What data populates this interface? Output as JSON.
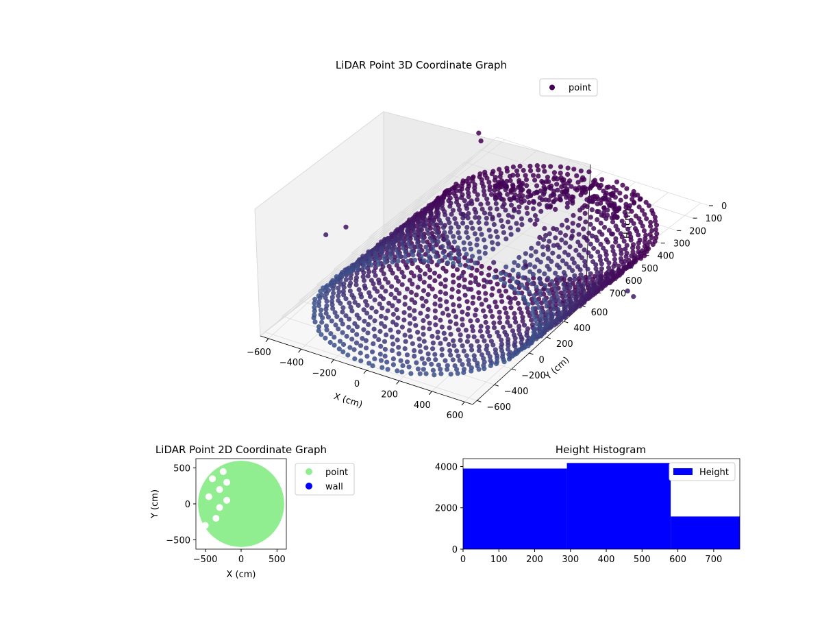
{
  "chart_data": [
    {
      "type": "scatter",
      "projection": "3d",
      "title": "LiDAR Point 3D Coordinate Graph",
      "xlabel": "X (cm)",
      "ylabel": "Y (cm)",
      "zlabel": "H (cm)",
      "x_ticks": [
        "−600",
        "−400",
        "−200",
        "0",
        "200",
        "400",
        "600"
      ],
      "y_ticks": [
        "−600",
        "−400",
        "−200",
        "0",
        "200",
        "400",
        "600"
      ],
      "z_ticks": [
        "0",
        "100",
        "200",
        "300",
        "400",
        "500",
        "600",
        "700"
      ],
      "xlim": [
        -650,
        650
      ],
      "ylim": [
        -650,
        650
      ],
      "zlim": [
        0,
        770
      ],
      "z_inverted": true,
      "colormap": "viridis",
      "colors": {
        "top": "#440154",
        "mid": "#3b528b",
        "teal": "#2c8a8c"
      },
      "legend": {
        "location": "upper right",
        "entries": [
          {
            "label": "point",
            "color": "#440154"
          }
        ]
      },
      "structure": {
        "wall": {
          "shape": "cylinder",
          "radius": 600,
          "arc_start_deg": 95,
          "arc_end_deg": 440,
          "h_min": 0,
          "h_max": 770
        },
        "interior_clusters": [
          {
            "x": -100,
            "y": 420,
            "h_min": 0,
            "h_max": 150
          },
          {
            "x": 50,
            "y": 520,
            "h_min": 0,
            "h_max": 150
          },
          {
            "x": 200,
            "y": 500,
            "h_min": 0,
            "h_max": 140
          },
          {
            "x": -300,
            "y": 300,
            "h_min": 0,
            "h_max": 130
          }
        ],
        "outliers": [
          {
            "x": -900,
            "y": -200,
            "h": 350
          },
          {
            "x": -850,
            "y": -100,
            "h": 330
          },
          {
            "x": 800,
            "y": 200,
            "h": 380
          },
          {
            "x": 750,
            "y": 300,
            "h": 420
          },
          {
            "x": -700,
            "y": 600,
            "h": 20
          },
          {
            "x": -750,
            "y": 650,
            "h": 10
          }
        ]
      }
    },
    {
      "type": "scatter",
      "title": "LiDAR Point 2D Coordinate Graph",
      "xlabel": "X (cm)",
      "ylabel": "Y (cm)",
      "x_ticks": [
        "−500",
        "0",
        "500"
      ],
      "y_ticks": [
        "−500",
        "0",
        "500"
      ],
      "xlim": [
        -630,
        630
      ],
      "ylim": [
        -630,
        630
      ],
      "legend": {
        "location": "outside right",
        "entries": [
          {
            "label": "point",
            "color": "#90ee90"
          },
          {
            "label": "wall",
            "color": "#0000ff"
          }
        ]
      },
      "series": [
        {
          "name": "point",
          "color": "#90ee90",
          "shape": "disk",
          "center": [
            0,
            0
          ],
          "radius": 600
        },
        {
          "name": "wall",
          "color": "#0000ff",
          "points": []
        }
      ],
      "gaps": [
        {
          "x": -450,
          "y": 100
        },
        {
          "x": -300,
          "y": 200
        },
        {
          "x": -200,
          "y": 50
        },
        {
          "x": -400,
          "y": 350
        },
        {
          "x": -250,
          "y": 450
        },
        {
          "x": -500,
          "y": -300
        },
        {
          "x": -350,
          "y": -200
        },
        {
          "x": -200,
          "y": 300
        },
        {
          "x": -300,
          "y": -50
        }
      ]
    },
    {
      "type": "bar",
      "subtype": "histogram",
      "title": "Height Histogram",
      "xlabel": "",
      "ylabel": "",
      "x_ticks": [
        "0",
        "100",
        "200",
        "300",
        "400",
        "500",
        "600",
        "700"
      ],
      "y_ticks": [
        "0",
        "2000",
        "4000"
      ],
      "xlim": [
        0,
        773
      ],
      "ylim": [
        0,
        4380
      ],
      "bins": [
        {
          "x_start": 0,
          "x_end": 290,
          "value": 3900
        },
        {
          "x_start": 290,
          "x_end": 580,
          "value": 4170
        },
        {
          "x_start": 580,
          "x_end": 773,
          "value": 1580
        }
      ],
      "color": "#0000ff",
      "legend": {
        "location": "upper right",
        "entries": [
          {
            "label": "Height",
            "color": "#0000ff"
          }
        ]
      }
    }
  ]
}
